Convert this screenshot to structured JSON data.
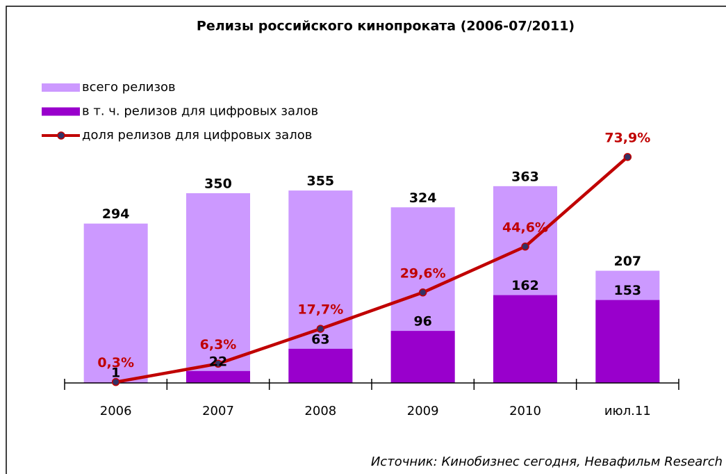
{
  "chart_data": {
    "type": "bar",
    "title": "Релизы российского кинопроката (2006-07/2011)",
    "categories": [
      "2006",
      "2007",
      "2008",
      "2009",
      "2010",
      "июл.11"
    ],
    "series": [
      {
        "name": "всего релизов",
        "type": "bar",
        "color": "#cc99ff",
        "values": [
          294,
          350,
          355,
          324,
          363,
          207
        ]
      },
      {
        "name": "в т. ч. релизов для цифровых залов",
        "type": "bar",
        "color": "#9900cc",
        "values": [
          1,
          22,
          63,
          96,
          162,
          153
        ]
      },
      {
        "name": "доля релизов для цифровых залов",
        "type": "line",
        "axis": "y2",
        "color": "#c00000",
        "values": [
          0.3,
          6.3,
          17.7,
          29.6,
          44.6,
          73.9
        ],
        "value_labels": [
          "0,3%",
          "6,3%",
          "17,7%",
          "29,6%",
          "44,6%",
          "73,9%"
        ]
      }
    ],
    "ylim": [
      0,
      400
    ],
    "y2lim": [
      0,
      80
    ],
    "source": "Источник: Кинобизнес сегодня, Невафильм Research"
  }
}
